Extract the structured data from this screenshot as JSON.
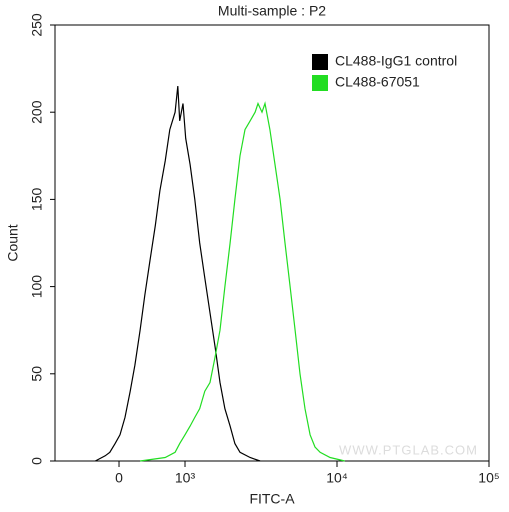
{
  "chart_data": {
    "type": "line",
    "title": "Multi-sample : P2",
    "x_label": "FITC-A",
    "y_label": "Count",
    "watermark": "WWW.PTGLAB.COM",
    "xscale": "biexponential",
    "xlim": [
      -970,
      100000
    ],
    "xticks": [
      0,
      {
        "value": 1000,
        "label": "10³"
      },
      {
        "value": 10000,
        "label": "10⁴"
      },
      {
        "value": 100000,
        "label": "10⁵"
      }
    ],
    "ylim": [
      0,
      250
    ],
    "yticks": [
      0,
      50,
      100,
      150,
      200,
      250
    ],
    "legend": "top-right",
    "series": [
      {
        "name": "CL488-IgG1 control",
        "color": "#000000",
        "x": [
          -360,
          -210,
          -140,
          -60,
          15,
          90,
          170,
          240,
          320,
          390,
          470,
          550,
          620,
          700,
          770,
          850,
          890,
          920,
          970,
          1010,
          1080,
          1160,
          1250,
          1350,
          1460,
          1580,
          1700,
          1830,
          1980,
          2130,
          2300,
          2680,
          3120
        ],
        "values": [
          0,
          3,
          5,
          10,
          15,
          25,
          40,
          55,
          75,
          95,
          115,
          135,
          155,
          172,
          190,
          200,
          215,
          195,
          205,
          185,
          170,
          150,
          125,
          105,
          85,
          65,
          45,
          30,
          20,
          10,
          5,
          2,
          0
        ]
      },
      {
        "name": "CL488-67051",
        "color": "#22dd22",
        "x": [
          320,
          700,
          850,
          920,
          1000,
          1080,
          1160,
          1250,
          1350,
          1460,
          1580,
          1700,
          1830,
          1980,
          2130,
          2300,
          2480,
          2680,
          2890,
          3020,
          3210,
          3360,
          3620,
          3910,
          4220,
          4550,
          4910,
          5300,
          5710,
          6160,
          6650,
          7170,
          7740,
          9000,
          11260
        ],
        "values": [
          0,
          2,
          5,
          10,
          15,
          20,
          25,
          30,
          40,
          45,
          60,
          75,
          100,
          125,
          150,
          175,
          190,
          195,
          200,
          205,
          200,
          205,
          190,
          170,
          150,
          125,
          100,
          75,
          50,
          30,
          15,
          8,
          5,
          2,
          0
        ]
      }
    ]
  }
}
